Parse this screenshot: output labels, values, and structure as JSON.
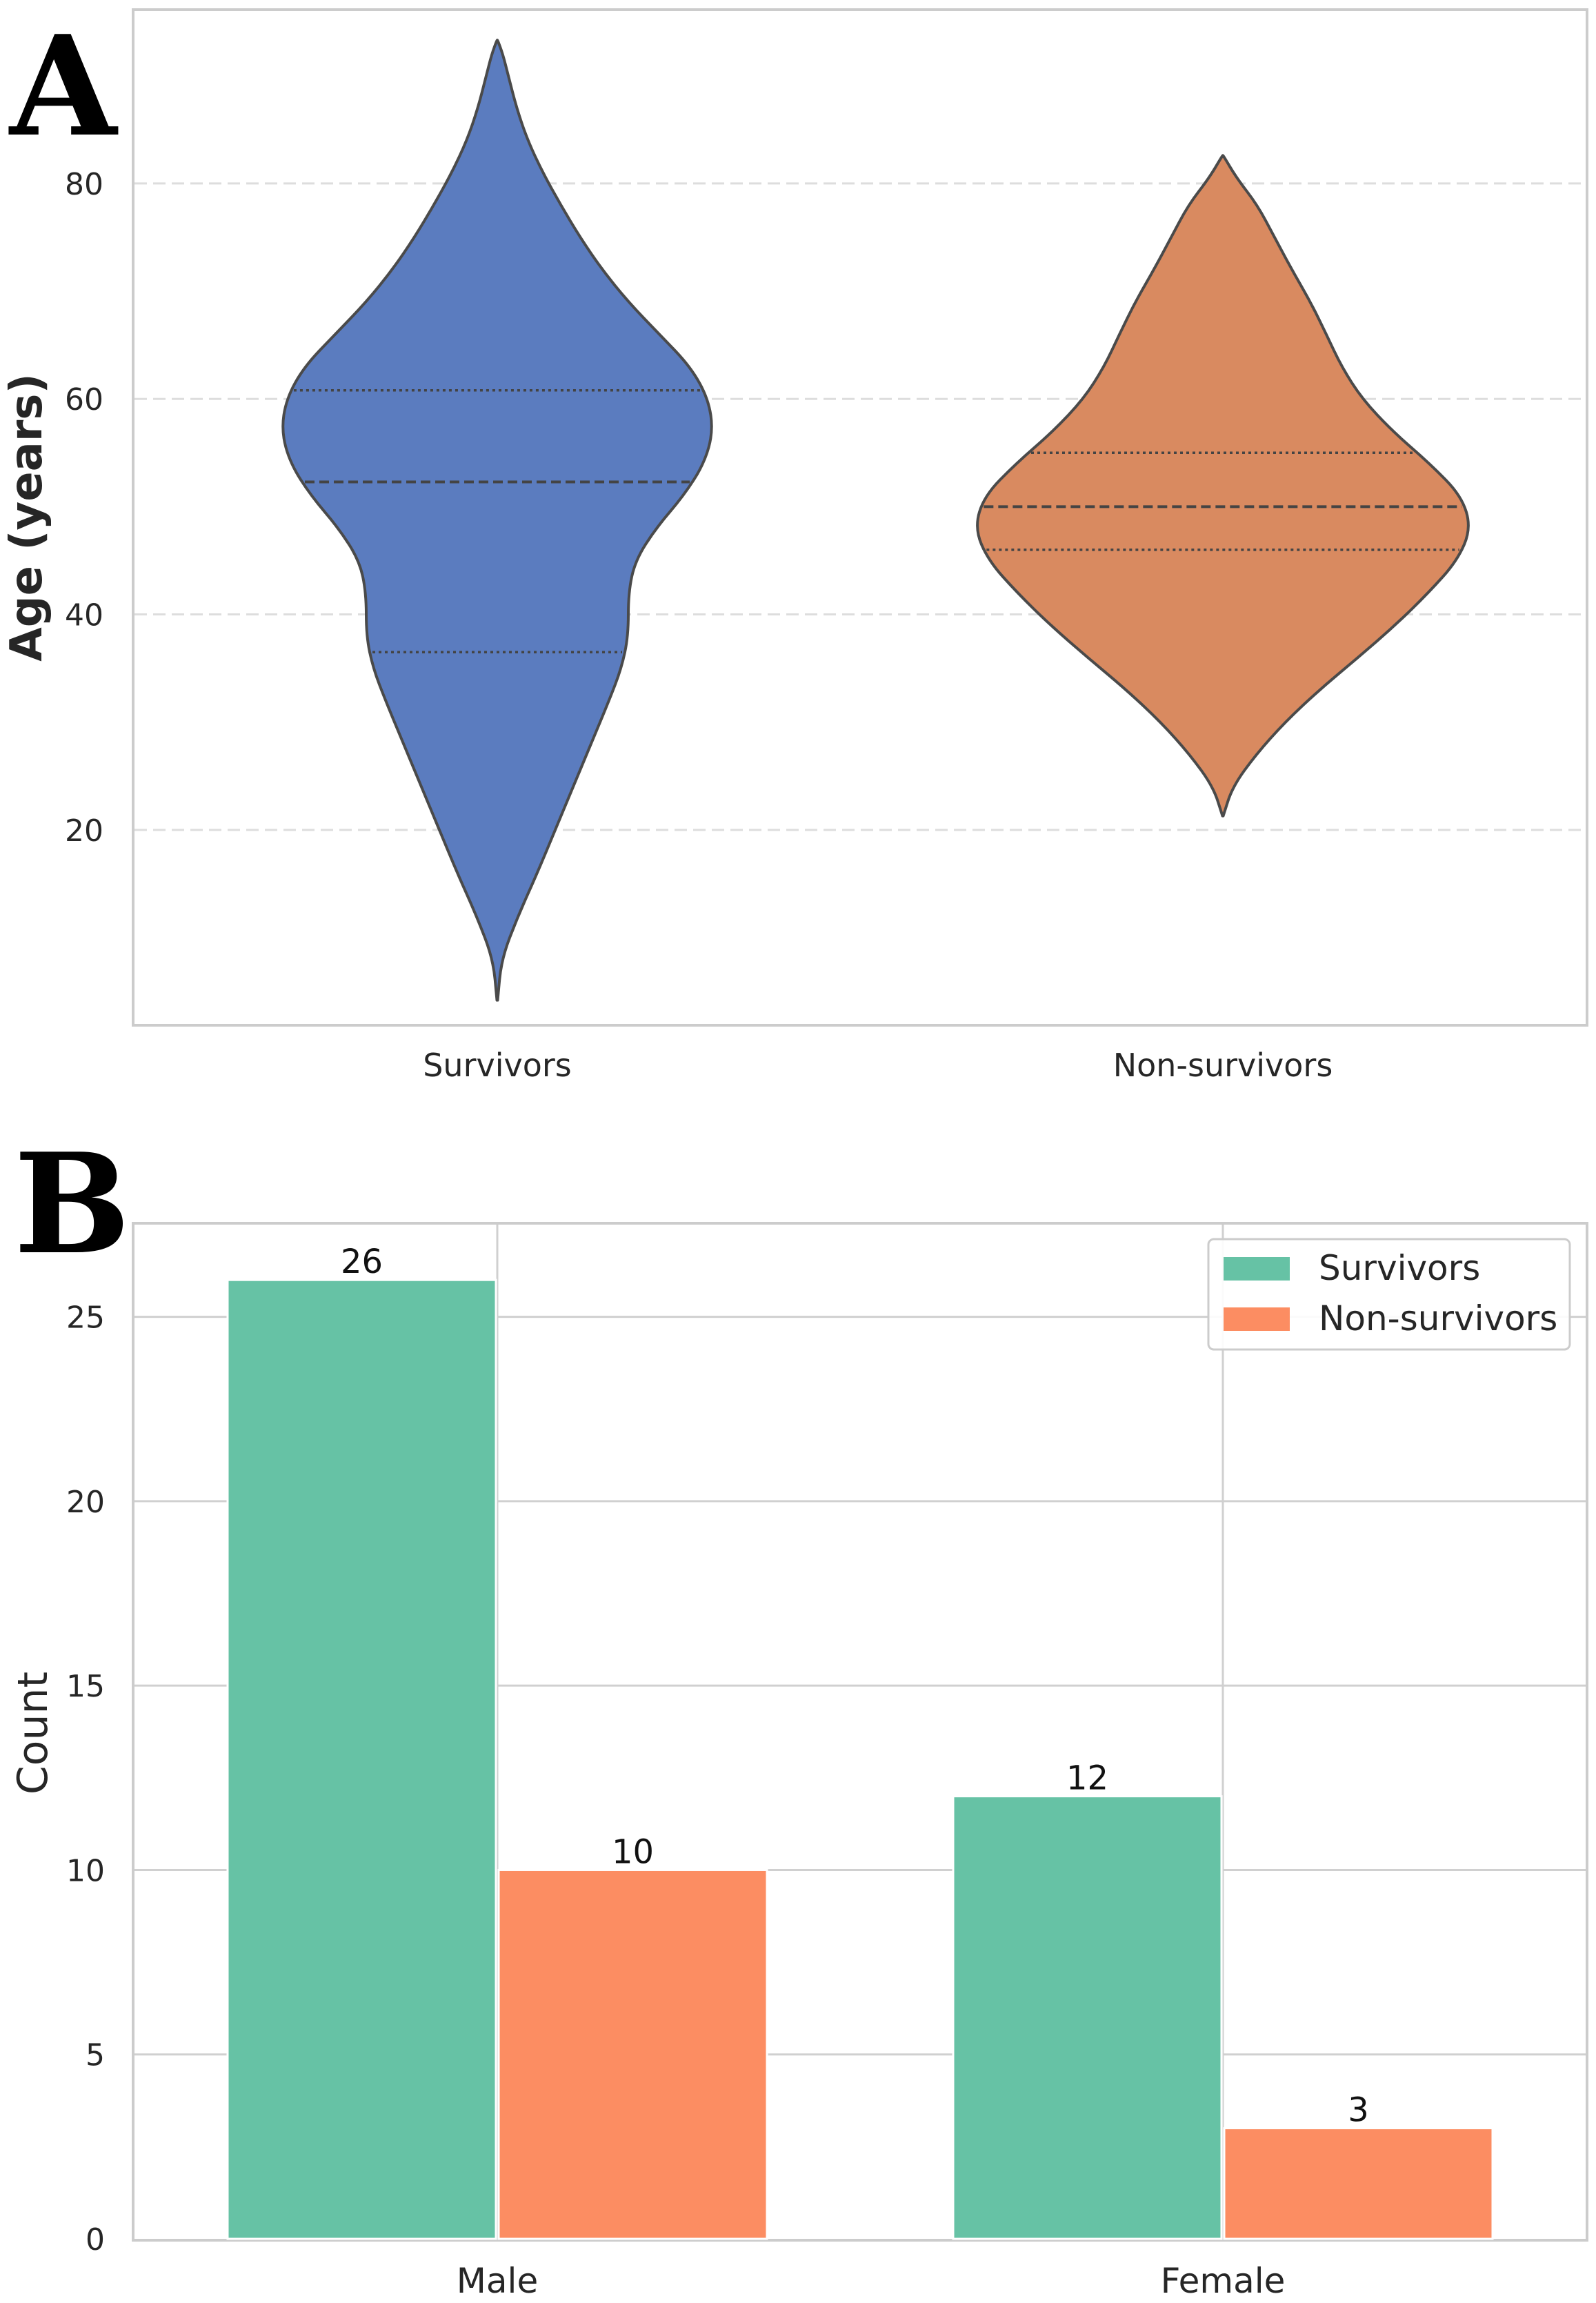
{
  "chart_data": [
    {
      "panel": "A",
      "type": "violin",
      "title": "",
      "xlabel": "",
      "ylabel": "Age (years)",
      "ylim": [
        2,
        96
      ],
      "yticks": [
        20,
        40,
        60,
        80
      ],
      "grid": "y-dashed",
      "categories": [
        "Survivors",
        "Non-survivors"
      ],
      "colors": [
        "#5b7cbf",
        "#d98a60"
      ],
      "violins": [
        {
          "name": "Survivors",
          "min": 4.2,
          "max": 93.3,
          "quartiles": [
            36.5,
            52.3,
            60.8
          ],
          "profile": [
            [
              4.2,
              0.5
            ],
            [
              8,
              6
            ],
            [
              12,
              30
            ],
            [
              16,
              58
            ],
            [
              20,
              84
            ],
            [
              24,
              110
            ],
            [
              28,
              136
            ],
            [
              32,
              162
            ],
            [
              35,
              180
            ],
            [
              38,
              190
            ],
            [
              42,
              190
            ],
            [
              45,
              200
            ],
            [
              48,
              230
            ],
            [
              51,
              270
            ],
            [
              54,
              300
            ],
            [
              57,
              313
            ],
            [
              60,
              306
            ],
            [
              63,
              280
            ],
            [
              66,
              235
            ],
            [
              69,
              190
            ],
            [
              72,
              152
            ],
            [
              75,
              120
            ],
            [
              78,
              92
            ],
            [
              81,
              66
            ],
            [
              84,
              44
            ],
            [
              87,
              28
            ],
            [
              90,
              16
            ],
            [
              92,
              8
            ],
            [
              93.3,
              0.5
            ]
          ]
        },
        {
          "name": "Non-survivors",
          "min": 21.3,
          "max": 82.6,
          "quartiles": [
            46.0,
            50.0,
            55.0
          ],
          "profile": [
            [
              21.3,
              0.5
            ],
            [
              24,
              14
            ],
            [
              27,
              48
            ],
            [
              30,
              90
            ],
            [
              33,
              140
            ],
            [
              36,
              196
            ],
            [
              39,
              250
            ],
            [
              42,
              298
            ],
            [
              45,
              340
            ],
            [
              48,
              360
            ],
            [
              51,
              346
            ],
            [
              54,
              300
            ],
            [
              57,
              246
            ],
            [
              60,
              202
            ],
            [
              63,
              172
            ],
            [
              66,
              150
            ],
            [
              69,
              127
            ],
            [
              72,
              100
            ],
            [
              75,
              75
            ],
            [
              78,
              50
            ],
            [
              80.5,
              20
            ],
            [
              82.6,
              0.5
            ]
          ]
        }
      ]
    },
    {
      "panel": "B",
      "type": "bar",
      "title": "",
      "xlabel": "",
      "ylabel": "Count",
      "ylim": [
        0,
        27.5
      ],
      "yticks": [
        0,
        5,
        10,
        15,
        20,
        25
      ],
      "grid": "both",
      "legend_position": "top-right",
      "categories": [
        "Male",
        "Female"
      ],
      "series": [
        {
          "name": "Survivors",
          "color": "#66c2a5",
          "values": [
            26,
            12
          ]
        },
        {
          "name": "Non-survivors",
          "color": "#fc8d62",
          "values": [
            10,
            3
          ]
        }
      ]
    }
  ]
}
